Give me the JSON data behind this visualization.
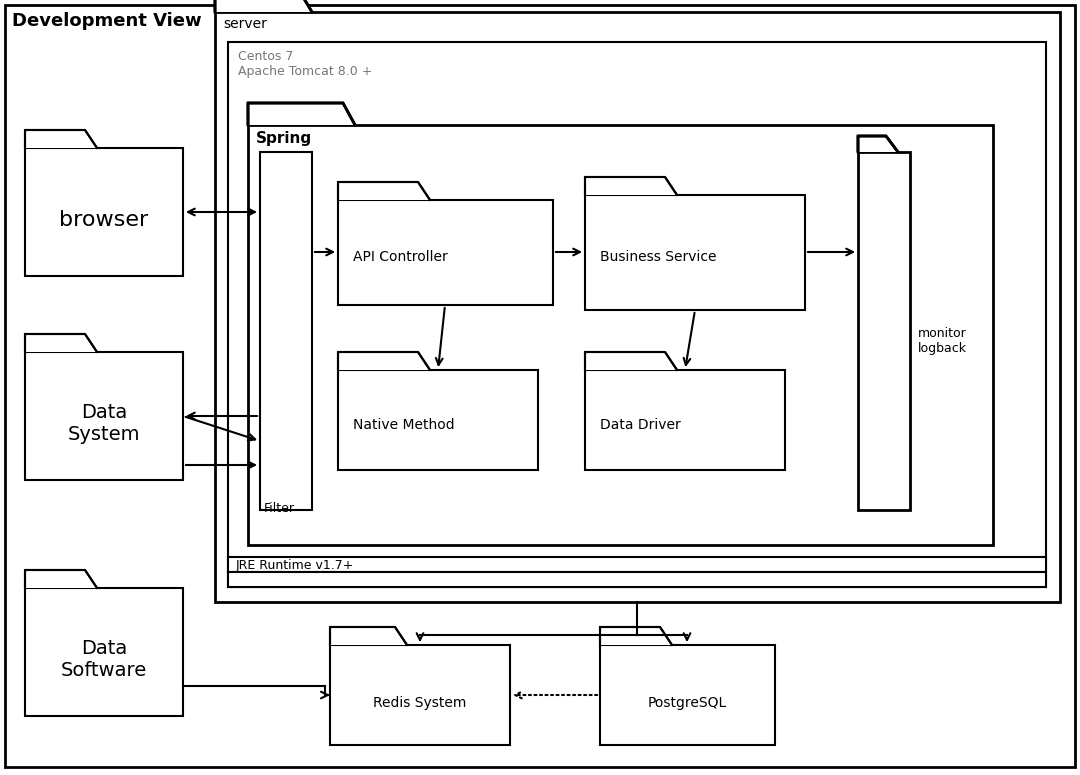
{
  "bg_color": "#ffffff",
  "border_color": "#000000",
  "title": "Development View",
  "server_label": "server",
  "centos_label": "Centos 7\nApache Tomcat 8.0 +",
  "spring_label": "Spring",
  "jre_label": "JRE Runtime v1.7+",
  "filter_label": "Filter",
  "api_label": "API Controller",
  "business_label": "Business Service",
  "native_label": "Native Method",
  "driver_label": "Data Driver",
  "monitor_label": "monitor\nlogback",
  "browser_label": "browser",
  "datasystem_label": "Data\nSystem",
  "datasoftware_label": "Data\nSoftware",
  "redis_label": "Redis System",
  "postgres_label": "PostgreSQL",
  "text_color_gray": "#777777"
}
